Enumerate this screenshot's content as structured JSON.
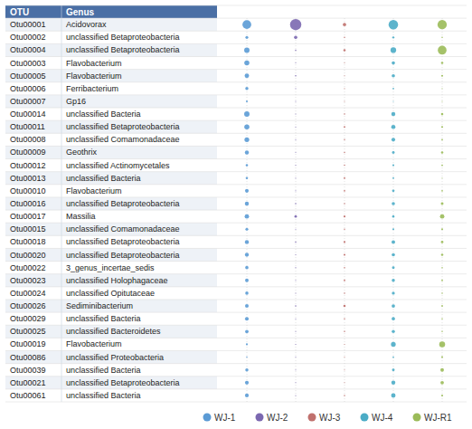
{
  "chart_data": {
    "type": "bubble",
    "table_headers": [
      "OTU",
      "Genus"
    ],
    "categories": [
      "Otu00001",
      "Otu00002",
      "Otu00004",
      "Otu00003",
      "Otu00005",
      "Otu00006",
      "Otu00007",
      "Otu00014",
      "Otu00011",
      "Otu00008",
      "Otu00009",
      "Otu00012",
      "Otu00013",
      "Otu00010",
      "Otu00016",
      "Otu00017",
      "Otu00015",
      "Otu00018",
      "Otu00020",
      "Otu00022",
      "Otu00023",
      "Otu00024",
      "Otu00026",
      "Otu00029",
      "Otu00025",
      "Otu00019",
      "Otu00086",
      "Otu00039",
      "Otu00021",
      "Otu00061"
    ],
    "genera": [
      "Acidovorax",
      "unclassified Betaproteobacteria",
      "unclassified Betaproteobacteria",
      "Flavobacterium",
      "Flavobacterium",
      "Ferribacterium",
      "Gp16",
      "unclassified Bacteria",
      "unclassified Betaproteobacteria",
      "unclassified Comamonadaceae",
      "Geothrix",
      "unclassified Actinomycetales",
      "unclassified Bacteria",
      "Flavobacterium",
      "unclassified Betaproteobacteria",
      "Massilia",
      "unclassified Comamonadaceae",
      "unclassified Betaproteobacteria",
      "unclassified Betaproteobacteria",
      "3_genus_incertae_sedis",
      "unclassified Holophagaceae",
      "unclassified Opitutaceae",
      "Sediminibacterium",
      "unclassified Bacteria",
      "unclassified Bacteroidetes",
      "Flavobacterium",
      "unclassified Proteobacteria",
      "unclassified Bacteria",
      "unclassified Betaproteobacteria",
      "unclassified Bacteria"
    ],
    "series": [
      {
        "name": "WJ-1",
        "color": "#5b9bd5",
        "values": [
          8500,
          900,
          3200,
          2800,
          2200,
          1100,
          400,
          3200,
          2800,
          2500,
          1800,
          600,
          600,
          1500,
          1800,
          2200,
          900,
          1800,
          1700,
          1200,
          1400,
          1200,
          1500,
          1500,
          1300,
          400,
          200,
          1100,
          1600,
          1600
        ]
      },
      {
        "name": "WJ-2",
        "color": "#7B68B0",
        "values": [
          14000,
          1200,
          200,
          100,
          200,
          100,
          100,
          100,
          100,
          100,
          100,
          100,
          100,
          100,
          200,
          700,
          100,
          200,
          100,
          100,
          100,
          100,
          200,
          100,
          100,
          100,
          100,
          100,
          100,
          100
        ]
      },
      {
        "name": "WJ-3",
        "color": "#c0706d",
        "values": [
          1200,
          200,
          600,
          100,
          100,
          100,
          100,
          200,
          300,
          200,
          200,
          200,
          300,
          300,
          200,
          400,
          200,
          400,
          400,
          200,
          300,
          200,
          600,
          200,
          200,
          100,
          100,
          100,
          100,
          200
        ]
      },
      {
        "name": "WJ-4",
        "color": "#4bacc6",
        "values": [
          10000,
          500,
          3500,
          1200,
          1200,
          300,
          100,
          1800,
          2000,
          1500,
          800,
          400,
          300,
          700,
          1200,
          600,
          400,
          1400,
          1200,
          800,
          1100,
          1000,
          1300,
          1200,
          1100,
          2500,
          300,
          800,
          1800,
          2200
        ]
      },
      {
        "name": "WJ-R1",
        "color": "#9bbb59",
        "values": [
          9500,
          200,
          8500,
          600,
          400,
          100,
          100,
          600,
          400,
          300,
          600,
          300,
          100,
          300,
          800,
          2200,
          400,
          700,
          600,
          200,
          300,
          200,
          300,
          200,
          200,
          3800,
          400,
          1400,
          1300,
          400
        ]
      }
    ],
    "grid": true,
    "legend": "lower right",
    "tick_labels": false
  }
}
